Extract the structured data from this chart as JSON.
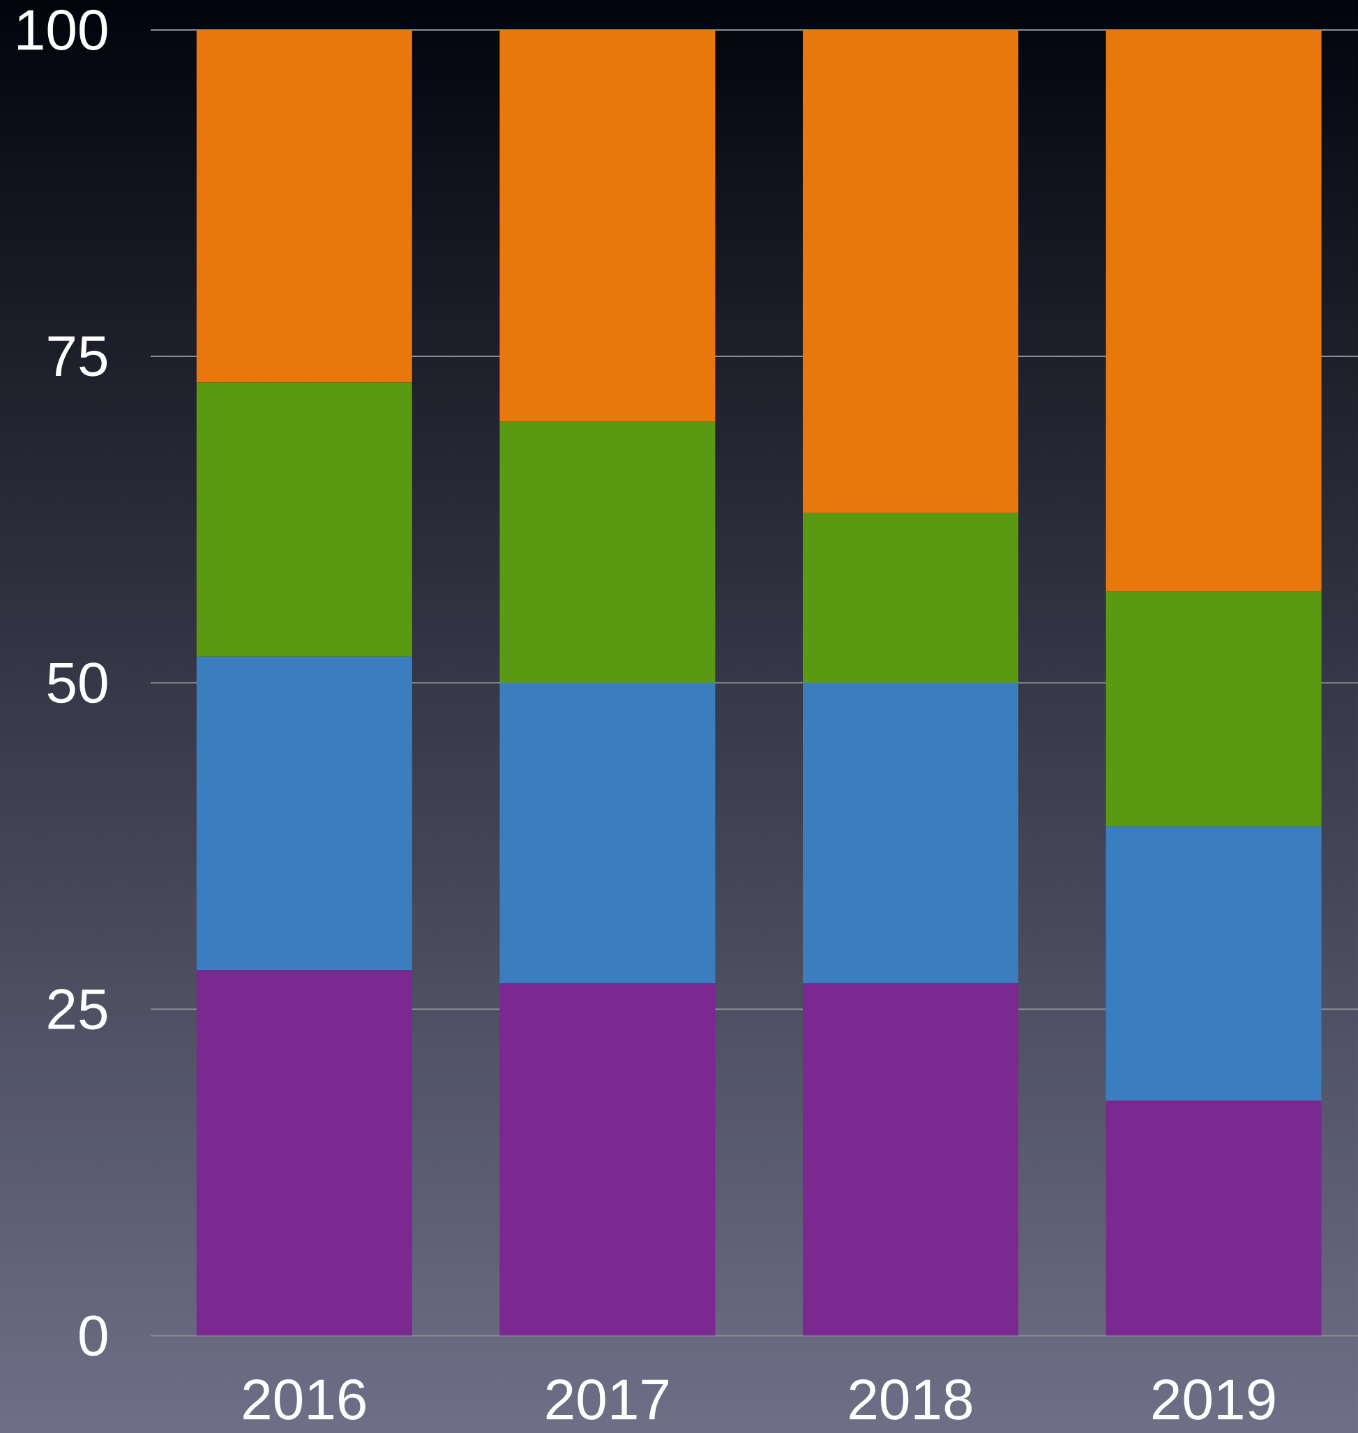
{
  "chart_data": {
    "type": "bar",
    "stacked": true,
    "categories": [
      "2016",
      "2017",
      "2018",
      "2019"
    ],
    "series": [
      {
        "color": "#7b2890",
        "values": [
          28,
          27,
          27,
          18
        ]
      },
      {
        "color": "#3a7ebf",
        "values": [
          24,
          23,
          23,
          21
        ]
      },
      {
        "color": "#5a9a12",
        "values": [
          21,
          20,
          13,
          18
        ]
      },
      {
        "color": "#e8780c",
        "values": [
          27,
          30,
          37,
          43
        ]
      }
    ],
    "ylim": [
      0,
      100
    ],
    "yticks": [
      0,
      25,
      50,
      75,
      100
    ],
    "grid": "y"
  }
}
